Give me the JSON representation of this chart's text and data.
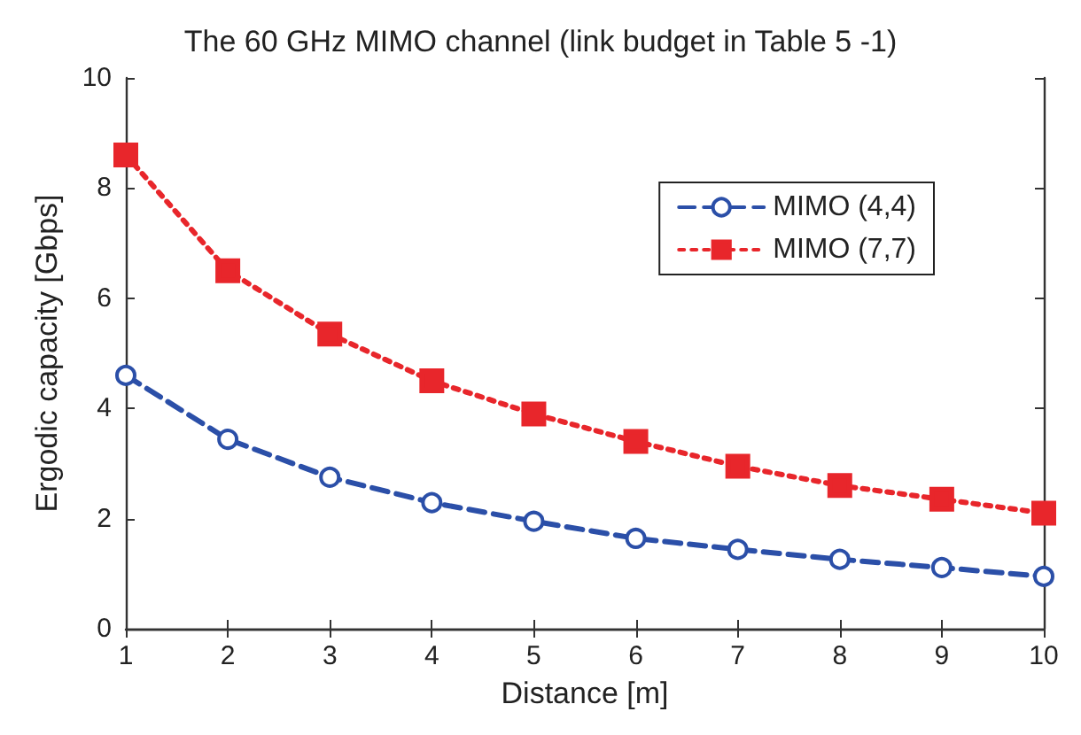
{
  "chart_data": {
    "type": "line",
    "title": "The 60 GHz MIMO channel (link budget in Table 5 -1)",
    "xlabel": "Distance [m]",
    "ylabel": "Ergodic capacity [Gbps]",
    "x": [
      1,
      2,
      3,
      4,
      5,
      6,
      7,
      8,
      9,
      10
    ],
    "series": [
      {
        "name": "MIMO (4,4)",
        "color": "#2b4fa8",
        "marker": "circle",
        "line_style": "dashed",
        "values": [
          4.6,
          3.44,
          2.75,
          2.29,
          1.95,
          1.64,
          1.44,
          1.26,
          1.11,
          0.95
        ]
      },
      {
        "name": "MIMO (7,7)",
        "color": "#e8262b",
        "marker": "square",
        "line_style": "dotted",
        "values": [
          8.6,
          6.5,
          5.35,
          4.5,
          3.9,
          3.4,
          2.95,
          2.6,
          2.35,
          2.1
        ]
      }
    ],
    "xlim": [
      1,
      10
    ],
    "xticks": [
      1,
      2,
      3,
      4,
      5,
      6,
      7,
      8,
      9,
      10
    ],
    "ylim": [
      0,
      10
    ],
    "yticks": [
      0,
      2,
      4,
      6,
      8,
      10
    ],
    "grid": false,
    "legend": "top right"
  }
}
